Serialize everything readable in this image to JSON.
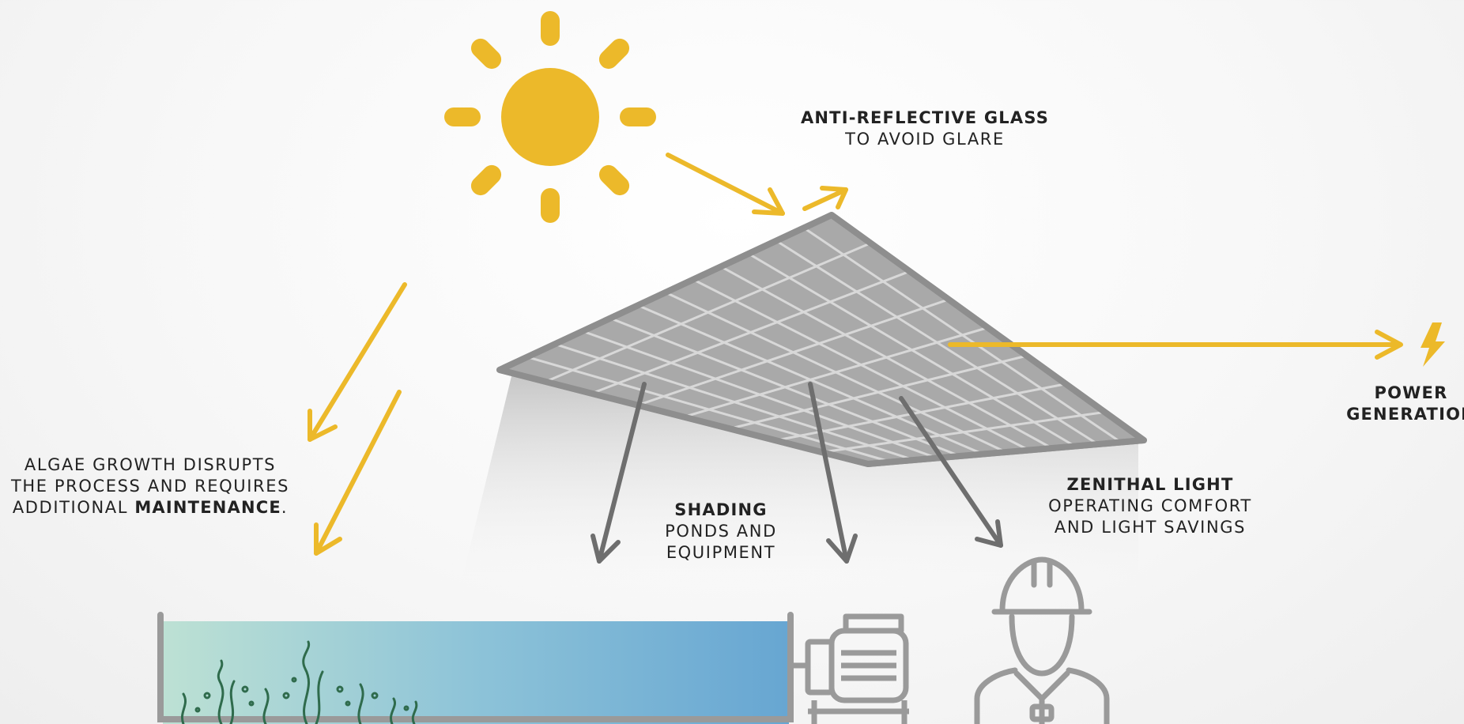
{
  "labels": {
    "anti_reflective": {
      "title": "ANTI-REFLECTIVE GLASS",
      "line": "TO AVOID GLARE"
    },
    "power": {
      "line1": "POWER",
      "line2": "GENERATION"
    },
    "algae": {
      "line1": "ALGAE GROWTH DISRUPTS",
      "line2": "THE PROCESS AND REQUIRES",
      "line3_prefix": "ADDITIONAL",
      "line3_bold": "MAINTENANCE",
      "line3_suffix": "."
    },
    "shading": {
      "title": "SHADING",
      "line1": "PONDS AND",
      "line2": "EQUIPMENT"
    },
    "zenithal": {
      "title": "ZENITHAL LIGHT",
      "line1": "OPERATING COMFORT",
      "line2": "AND LIGHT SAVINGS"
    }
  },
  "icons": [
    "sun-icon",
    "solar-panel-icon",
    "lightning-bolt-icon",
    "pond-icon",
    "algae-icon",
    "pump-icon",
    "worker-icon"
  ],
  "colors": {
    "sun": "#ECB92A",
    "arrow_yellow": "#ECB92A",
    "arrow_gray": "#6E6E6E",
    "panel": "#A8A8A8",
    "water_left": "#B9DFD2",
    "water_right": "#6AA8D2",
    "algae": "#2F6B4C"
  }
}
